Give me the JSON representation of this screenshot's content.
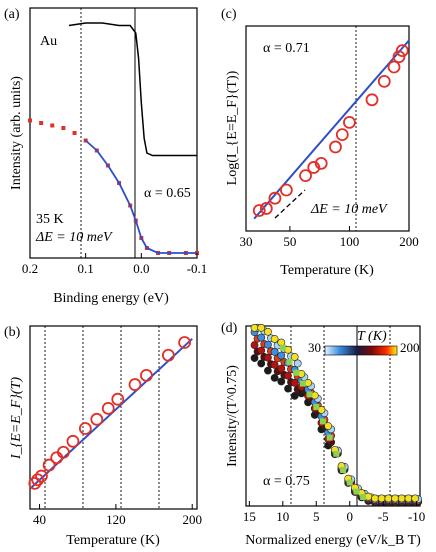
{
  "chart_data": [
    {
      "panel": "(a)",
      "type": "line",
      "xlabel": "Binding energy (eV)",
      "ylabel": "Intensity (arb. units)",
      "xticks": [
        "0.2",
        "0.1",
        "0.0",
        "-0.1"
      ],
      "xlim": [
        0.2,
        -0.1
      ],
      "annotations": [
        "Au",
        "α = 0.65",
        "35 K",
        "ΔE = 10 meV"
      ],
      "series": [
        {
          "name": "Au",
          "color": "#000000",
          "x": [
            0.13,
            0.1,
            0.07,
            0.04,
            0.02,
            0.01,
            0.005,
            0.0,
            -0.005,
            -0.01,
            -0.02,
            -0.05,
            -0.1
          ],
          "y": [
            0.93,
            0.94,
            0.94,
            0.93,
            0.93,
            0.9,
            0.8,
            0.62,
            0.48,
            0.42,
            0.41,
            0.41,
            0.41
          ]
        },
        {
          "color": "#e0302a",
          "x": [
            0.2,
            0.18,
            0.16,
            0.14,
            0.12,
            0.1,
            0.08,
            0.06,
            0.04,
            0.02,
            0.01,
            0.0,
            -0.01,
            -0.03,
            -0.05,
            -0.08,
            -0.1
          ],
          "y": [
            0.55,
            0.54,
            0.53,
            0.52,
            0.5,
            0.47,
            0.43,
            0.37,
            0.3,
            0.21,
            0.15,
            0.08,
            0.04,
            0.02,
            0.02,
            0.02,
            0.02
          ]
        },
        {
          "color": "#2f4fc8",
          "x": [
            0.1,
            0.08,
            0.06,
            0.04,
            0.02,
            0.01,
            0.0,
            -0.01,
            -0.03,
            -0.05,
            -0.08,
            -0.1
          ],
          "y": [
            0.47,
            0.43,
            0.37,
            0.3,
            0.21,
            0.15,
            0.08,
            0.04,
            0.02,
            0.02,
            0.02,
            0.02
          ]
        }
      ]
    },
    {
      "panel": "(b)",
      "type": "scatter",
      "xlabel": "Temperature (K)",
      "ylabel": "I_{E=E_F}(T)",
      "xticks": [
        "40",
        "120",
        "200"
      ],
      "xlim": [
        30,
        205
      ],
      "series": [
        {
          "color": "#e0302a",
          "x": [
            35,
            38,
            42,
            50,
            58,
            65,
            75,
            88,
            100,
            112,
            122,
            140,
            152,
            175,
            192
          ],
          "y": [
            0.14,
            0.16,
            0.18,
            0.24,
            0.28,
            0.31,
            0.37,
            0.44,
            0.49,
            0.55,
            0.6,
            0.68,
            0.73,
            0.84,
            0.91
          ]
        },
        {
          "color": "#2f4fc8",
          "x": [
            32,
            200
          ],
          "y": [
            0.12,
            0.93
          ]
        }
      ]
    },
    {
      "panel": "(c)",
      "type": "scatter",
      "xlabel": "Temperature (K)",
      "ylabel": "Log(I_{E=E_F}(T))",
      "xticks": [
        "30",
        "50",
        "100",
        "200"
      ],
      "xlim": [
        30,
        200
      ],
      "annotations": [
        "α = 0.71",
        "ΔE = 10 meV"
      ],
      "series": [
        {
          "color": "#e0302a",
          "x": [
            35,
            38,
            42,
            48,
            60,
            66,
            72,
            85,
            92,
            100,
            130,
            150,
            168,
            178,
            185
          ],
          "y": [
            0.1,
            0.11,
            0.16,
            0.2,
            0.27,
            0.31,
            0.33,
            0.41,
            0.47,
            0.53,
            0.64,
            0.73,
            0.8,
            0.85,
            0.88
          ]
        },
        {
          "color": "#2f4fc8",
          "x": [
            33,
            200
          ],
          "y": [
            0.06,
            0.93
          ]
        }
      ]
    },
    {
      "panel": "(d)",
      "type": "scatter",
      "xlabel": "Normalized energy (eV/k_B T)",
      "ylabel": "Intensity/(T^0.75)",
      "xticks": [
        "15",
        "10",
        "5",
        "0",
        "-5",
        "-10"
      ],
      "xlim": [
        15.5,
        -10.5
      ],
      "annotations": [
        "α = 0.75"
      ],
      "colorbar": {
        "label": "T (K)",
        "min": "30",
        "max": "200"
      },
      "series": [
        {
          "color": "#4aa3df",
          "x": [
            14,
            13,
            12,
            11,
            10,
            9,
            8,
            7,
            6,
            5,
            4,
            3,
            2,
            1,
            0,
            -1,
            -2,
            -3,
            -4,
            -5,
            -6,
            -7,
            -8,
            -9,
            -10
          ],
          "y": [
            0.93,
            0.9,
            0.86,
            0.82,
            0.8,
            0.76,
            0.72,
            0.68,
            0.63,
            0.56,
            0.48,
            0.39,
            0.3,
            0.21,
            0.14,
            0.09,
            0.06,
            0.04,
            0.03,
            0.03,
            0.03,
            0.03,
            0.03,
            0.03,
            0.03
          ]
        },
        {
          "color": "#8fd14f",
          "x": [
            10,
            9,
            8,
            7,
            6,
            5,
            4,
            3,
            2,
            1,
            0,
            -1,
            -2
          ],
          "y": [
            0.88,
            0.8,
            0.74,
            0.68,
            0.62,
            0.55,
            0.47,
            0.38,
            0.29,
            0.2,
            0.13,
            0.08,
            0.05
          ]
        }
      ]
    }
  ]
}
